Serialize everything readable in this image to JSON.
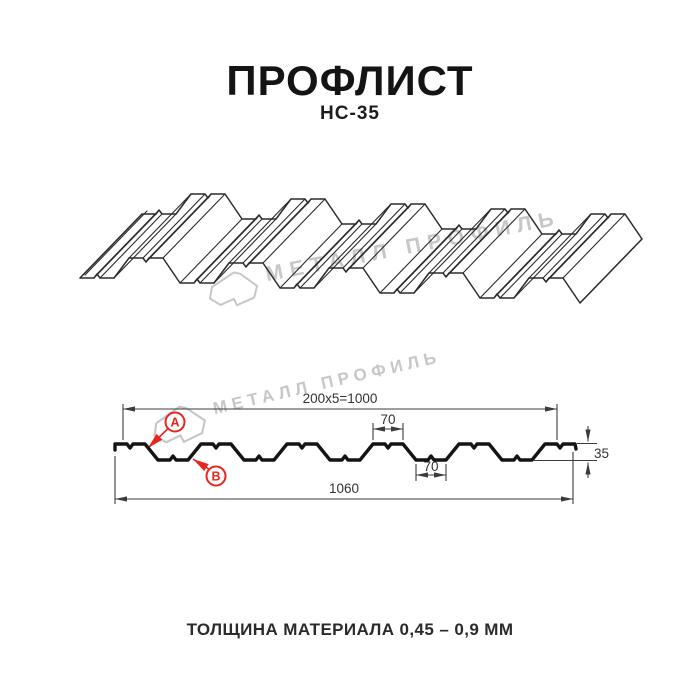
{
  "header": {
    "title": "ПРОФЛИСТ",
    "subtitle": "НС-35"
  },
  "watermark": {
    "text": "МЕТАЛЛ ПРОФИЛЬ"
  },
  "cross_section": {
    "dim_top_width": "200x5=1000",
    "dim_crest_width": "70",
    "dim_valley_width": "70",
    "dim_total_width": "1060",
    "dim_height": "35",
    "label_a": "A",
    "label_b": "B"
  },
  "footer": {
    "thickness_note": "ТОЛЩИНА МАТЕРИАЛА 0,45 – 0,9 ММ"
  },
  "colors": {
    "accent": "#e8251f",
    "line": "#141414",
    "dim_lines": "#3c3c3c",
    "watermark": "#c7c7c7"
  }
}
